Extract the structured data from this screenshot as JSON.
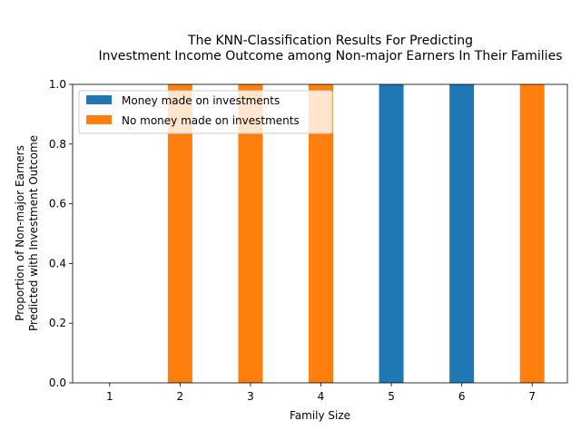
{
  "chart_data": {
    "type": "bar",
    "stacked": true,
    "title_lines": [
      "The KNN-Classification Results For Predicting",
      "Investment Income Outcome among Non-major Earners In Their Families"
    ],
    "xlabel": "Family Size",
    "ylabel_lines": [
      "Proportion of Non-major Earners",
      "Predicted with Investment Outcome"
    ],
    "categories": [
      "1",
      "2",
      "3",
      "4",
      "5",
      "6",
      "7"
    ],
    "ylim": [
      0,
      1
    ],
    "yticks": [
      "0.0",
      "0.2",
      "0.4",
      "0.6",
      "0.8",
      "1.0"
    ],
    "legend_position": "upper-left",
    "grid": false,
    "series": [
      {
        "name": "Money made on investments",
        "color": "#1f77b4",
        "values": [
          0,
          0,
          0,
          0,
          1,
          1,
          0
        ]
      },
      {
        "name": "No money made on investments",
        "color": "#ff7f0e",
        "values": [
          0,
          1,
          1,
          1,
          0,
          0,
          1
        ]
      }
    ]
  }
}
